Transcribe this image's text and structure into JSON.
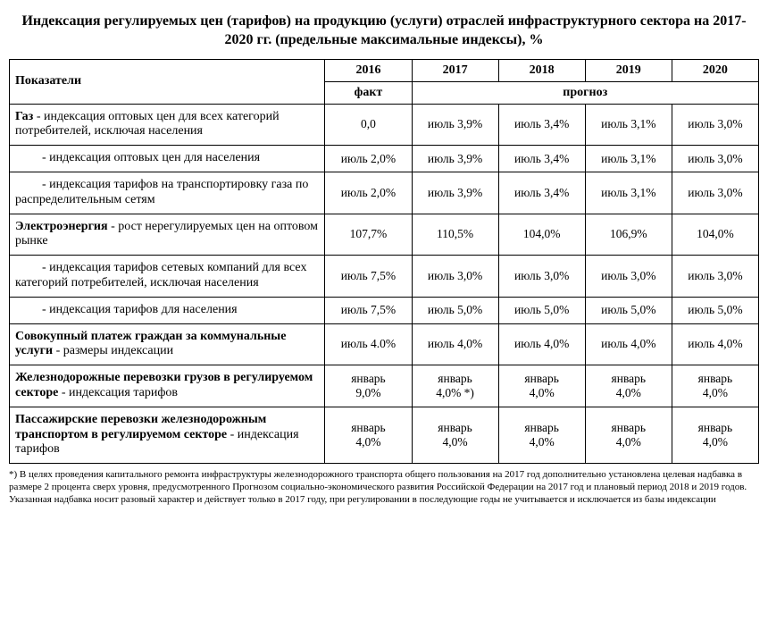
{
  "title": "Индексация  регулируемых цен (тарифов) на продукцию (услуги) отраслей  инфраструктурного сектора  на   2017-2020 гг. (предельные максимальные индексы), %",
  "header": {
    "indicators": "Показатели",
    "y2016": "2016",
    "y2017": "2017",
    "y2018": "2018",
    "y2019": "2019",
    "y2020": "2020",
    "fact": "факт",
    "forecast": "прогноз"
  },
  "rows": [
    {
      "label_html": "<span class='b'>Газ</span>  - индексация оптовых цен для всех категорий потребителей, исключая населения",
      "v2016": "0,0",
      "v2017": "июль 3,9%",
      "v2018": "июль 3,4%",
      "v2019": "июль 3,1%",
      "v2020": "июль 3,0%"
    },
    {
      "label_html": "<span class='sub1'>- индексация оптовых цен для населения</span>",
      "v2016": "июль 2,0%",
      "v2017": "июль 3,9%",
      "v2018": "июль 3,4%",
      "v2019": "июль 3,1%",
      "v2020": "июль 3,0%"
    },
    {
      "label_html": "<span class='sub2'>- индексация тарифов на транспортировку газа по распределительным сетям</span>",
      "v2016": "июль 2,0%",
      "v2017": "июль 3,9%",
      "v2018": "июль 3,4%",
      "v2019": "июль 3,1%",
      "v2020": "июль 3,0%"
    },
    {
      "label_html": "<span class='b'>Электроэнергия</span> - рост нерегулируемых цен на оптовом рынке",
      "v2016": "107,7%",
      "v2017": "110,5%",
      "v2018": "104,0%",
      "v2019": "106,9%",
      "v2020": "104,0%"
    },
    {
      "label_html": "<span class='sub2'>- индексация тарифов сетевых компаний для  всех категорий потребителей, исключая населения</span>",
      "v2016": "июль 7,5%",
      "v2017": "июль 3,0%",
      "v2018": "июль 3,0%",
      "v2019": "июль 3,0%",
      "v2020": "июль 3,0%"
    },
    {
      "label_html": "<span class='sub1'>- индексация тарифов  для населения</span>",
      "v2016": "июль 7,5%",
      "v2017": "июль 5,0%",
      "v2018": "июль 5,0%",
      "v2019": "июль 5,0%",
      "v2020": "июль 5,0%"
    },
    {
      "label_html": "<span class='b'>Совокупный платеж граждан за коммунальные услуги</span> - размеры индексации",
      "v2016": "июль 4.0%",
      "v2017": "июль 4,0%",
      "v2018": "июль 4,0%",
      "v2019": "июль 4,0%",
      "v2020": "июль 4,0%"
    },
    {
      "label_html": "<span class='b'>Железнодорожные перевозки грузов в регулируемом секторе</span> -  индексация тарифов",
      "v2016": "<span class='stack'>январь<br>9,0%</span>",
      "v2017": "<span class='stack'>январь<br>4,0% *)</span>",
      "v2018": "<span class='stack'>январь<br>4,0%</span>",
      "v2019": "<span class='stack'>январь<br>4,0%</span>",
      "v2020": "<span class='stack'>январь<br>4,0%</span>"
    },
    {
      "label_html": "<span class='b'>Пассажирские перевозки железнодорожным транспортом  в регулируемом секторе</span> - индексация тарифов",
      "v2016": "<span class='stack'>январь<br>4,0%</span>",
      "v2017": "<span class='stack'>январь<br>4,0%</span>",
      "v2018": "<span class='stack'>январь<br>4,0%</span>",
      "v2019": "<span class='stack'>январь<br>4,0%</span>",
      "v2020": "<span class='stack'>январь<br>4,0%</span>"
    }
  ],
  "footnote": "*) В целях проведения капитального ремонта инфраструктуры железнодорожного транспорта общего пользования на 2017 год дополнительно установлена целевая надбавка в размере 2 процента сверх уровня, предусмотренного  Прогнозом социально-экономического развития Российской Федерации на 2017 год и плановый период 2018 и 2019 годов. Указанная надбавка носит разовый характер и действует только в 2017 году, при регулировании в последующие годы не учитывается и исключается из базы индексации"
}
